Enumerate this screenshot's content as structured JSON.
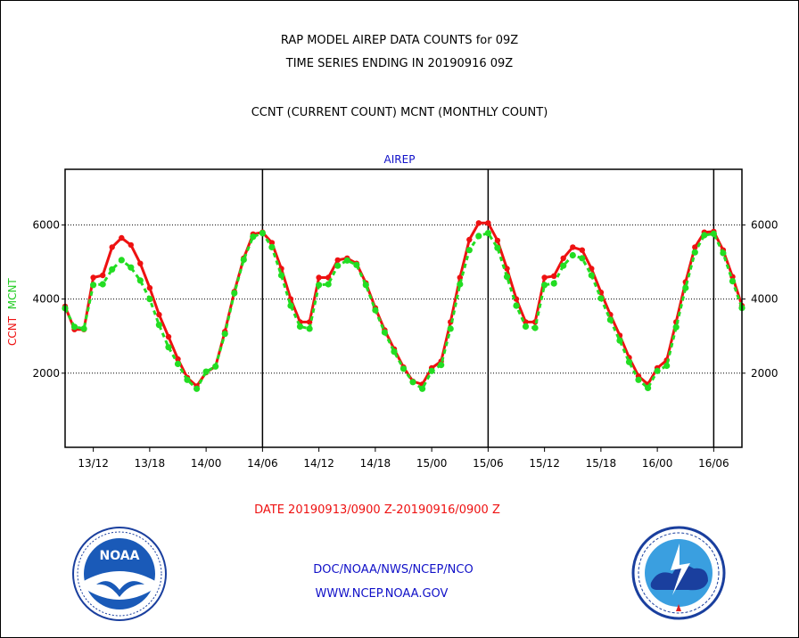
{
  "header": {
    "title_line1": "RAP MODEL AIREP DATA COUNTS for 09Z",
    "title_line2": "TIME SERIES ENDING IN 20190916 09Z",
    "subtitle": "CCNT (CURRENT COUNT) MCNT (MONTHLY COUNT)",
    "panel_label": "AIREP"
  },
  "axis": {
    "ylabel_ccnt": "CCNT",
    "ylabel_mcnt": "MCNT"
  },
  "footer": {
    "date_range": "DATE 20190913/0900 Z-20190916/0900 Z",
    "credit_line1": "DOC/NOAA/NWS/NCEP/NCO",
    "credit_line2": "WWW.NCEP.NOAA.GOV"
  },
  "logos": {
    "left_logo_text": "NOAA",
    "right_logo_text": "NATIONAL WEATHER SERVICE"
  },
  "colors": {
    "ccnt": "#ee1111",
    "mcnt": "#22dd22",
    "panel_text": "#1010c8"
  },
  "chart_data": {
    "type": "line",
    "title": "RAP MODEL AIREP DATA COUNTS for 09Z",
    "xlabel": "DATE 20190913/0900 Z-20190916/0900 Z",
    "ylabel": "CCNT MCNT",
    "x_unit": "hours since 20190913/0900 Z",
    "xlim": [
      0,
      72
    ],
    "ylim": [
      0,
      7500
    ],
    "yticks": [
      2000,
      4000,
      6000
    ],
    "xtick_labels": [
      {
        "hour": 3,
        "label": "13/12"
      },
      {
        "hour": 9,
        "label": "13/18"
      },
      {
        "hour": 15,
        "label": "14/00"
      },
      {
        "hour": 21,
        "label": "14/06"
      },
      {
        "hour": 27,
        "label": "14/12"
      },
      {
        "hour": 33,
        "label": "14/18"
      },
      {
        "hour": 39,
        "label": "15/00"
      },
      {
        "hour": 45,
        "label": "15/06"
      },
      {
        "hour": 51,
        "label": "15/12"
      },
      {
        "hour": 57,
        "label": "15/18"
      },
      {
        "hour": 63,
        "label": "16/00"
      },
      {
        "hour": 69,
        "label": "16/06"
      }
    ],
    "day_boundaries_hours": [
      21,
      45,
      69
    ],
    "grid_horizontal": true,
    "series": [
      {
        "name": "CCNT",
        "x": [
          0,
          1,
          2,
          3,
          4,
          5,
          6,
          7,
          8,
          9,
          10,
          11,
          12,
          13,
          14,
          15,
          16,
          17,
          18,
          19,
          20,
          21,
          22,
          23,
          24,
          25,
          26,
          27,
          28,
          29,
          30,
          31,
          32,
          33,
          34,
          35,
          36,
          37,
          38,
          39,
          40,
          41,
          42,
          43,
          44,
          45,
          46,
          47,
          48,
          49,
          50,
          51,
          52,
          53,
          54,
          55,
          56,
          57,
          58,
          59,
          60,
          61,
          62,
          63,
          64,
          65,
          66,
          67,
          68,
          69,
          70,
          71,
          72
        ],
        "values": [
          3800,
          3180,
          3180,
          4580,
          4640,
          5400,
          5650,
          5460,
          4960,
          4300,
          3580,
          2980,
          2380,
          1880,
          1650,
          2020,
          2180,
          3120,
          4200,
          5100,
          5750,
          5800,
          5520,
          4820,
          4000,
          3380,
          3380,
          4580,
          4580,
          5050,
          5100,
          4960,
          4430,
          3760,
          3160,
          2650,
          2160,
          1780,
          1700,
          2140,
          2320,
          3380,
          4580,
          5600,
          6050,
          6050,
          5580,
          4820,
          4000,
          3380,
          3380,
          4580,
          4620,
          5100,
          5400,
          5320,
          4820,
          4180,
          3580,
          3020,
          2420,
          1920,
          1700,
          2140,
          2350,
          3380,
          4460,
          5400,
          5800,
          5820,
          5320,
          4600,
          3820
        ]
      },
      {
        "name": "MCNT",
        "x": [
          0,
          1,
          2,
          3,
          4,
          5,
          6,
          7,
          8,
          9,
          10,
          11,
          12,
          13,
          14,
          15,
          16,
          17,
          18,
          19,
          20,
          21,
          22,
          23,
          24,
          25,
          26,
          27,
          28,
          29,
          30,
          31,
          32,
          33,
          34,
          35,
          36,
          37,
          38,
          39,
          40,
          41,
          42,
          43,
          44,
          45,
          46,
          47,
          48,
          49,
          50,
          51,
          52,
          53,
          54,
          55,
          56,
          57,
          58,
          59,
          60,
          61,
          62,
          63,
          64,
          65,
          66,
          67,
          68,
          69,
          70,
          71,
          72
        ],
        "values": [
          3750,
          3250,
          3200,
          4380,
          4400,
          4800,
          5050,
          4850,
          4500,
          4000,
          3300,
          2700,
          2250,
          1820,
          1580,
          2040,
          2180,
          3060,
          4160,
          5060,
          5680,
          5780,
          5400,
          4640,
          3820,
          3260,
          3200,
          4380,
          4400,
          4900,
          5040,
          4920,
          4380,
          3700,
          3100,
          2580,
          2120,
          1760,
          1580,
          2060,
          2220,
          3200,
          4400,
          5320,
          5700,
          5780,
          5380,
          4600,
          3820,
          3260,
          3220,
          4380,
          4420,
          4900,
          5180,
          5100,
          4640,
          4020,
          3440,
          2880,
          2300,
          1820,
          1600,
          2060,
          2200,
          3240,
          4300,
          5260,
          5720,
          5760,
          5240,
          4480,
          3760
        ]
      }
    ]
  }
}
